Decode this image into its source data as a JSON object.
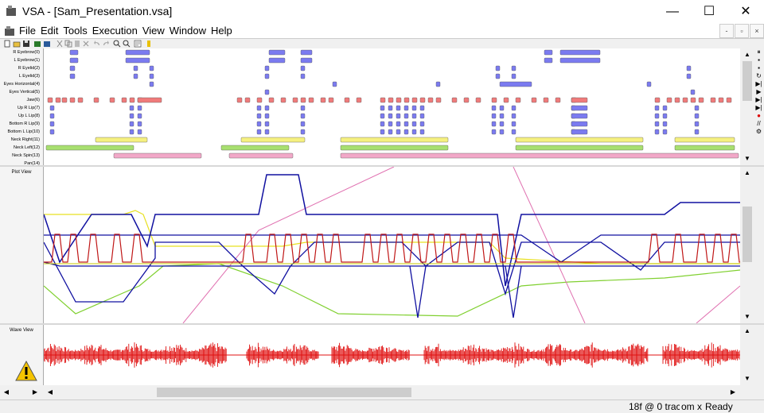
{
  "window": {
    "title": "VSA - [Sam_Presentation.vsa]",
    "minimize": "—",
    "maximize": "☐",
    "close": "✕"
  },
  "menu": [
    "File",
    "Edit",
    "Tools",
    "Execution",
    "View",
    "Window",
    "Help"
  ],
  "mdi_controls": {
    "minimize": "-",
    "restore": "▫",
    "close": "×"
  },
  "tracks": [
    "R Eyebrow(0)",
    "L Eyebrow(1)",
    "R Eyelid(2)",
    "L Eyelid(3)",
    "Eyes Horizontal(4)",
    "Eyes Vertical(5)",
    "Jaw(6)",
    "Up R Lip(7)",
    "Up L Lip(8)",
    "Bottom R Lip(9)",
    "Bottom L Lip(10)",
    "Neck Right(11)",
    "Neck Left(12)",
    "Neck Spin(13)",
    "Pan(14)"
  ],
  "panes": {
    "plot_title": "Plot View",
    "wave_title": "Wave View"
  },
  "colors": {
    "blue": "#7b7bf0",
    "red": "#f07b7b",
    "yellow": "#f5f080",
    "green": "#a8e070",
    "pink": "#f2a8c8",
    "plot_blue": "#1010a0",
    "plot_red": "#c01818",
    "plot_yellow": "#e8e020",
    "plot_green": "#80d030",
    "plot_pink": "#e070b0",
    "wave": "#e01010"
  },
  "status": {
    "frames": "18f @ 0 trac",
    "zoom": "om x",
    "state": "Ready"
  },
  "icons": [
    "new-icon",
    "open-icon",
    "save-icon",
    "import-icon",
    "export-icon",
    "cut-icon",
    "copy-icon",
    "paste-icon",
    "delete-icon",
    "undo-icon",
    "redo-icon",
    "zoom-in-icon",
    "zoom-out-icon",
    "properties-icon",
    "help-icon"
  ],
  "warning_icon": "warning-icon"
}
